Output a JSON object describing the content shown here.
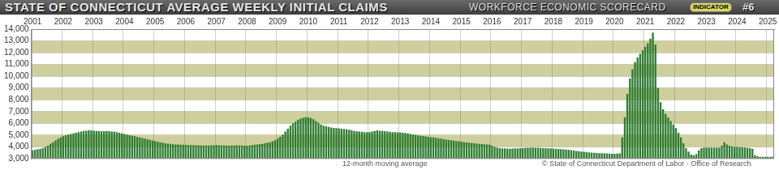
{
  "chart_data": {
    "type": "bar",
    "title": "STATE OF CONNECTICUT AVERAGE WEEKLY INITIAL CLAIMS",
    "subtitle": "WORKFORCE ECONOMIC SCORECARD",
    "annotations": [
      "INDICATOR",
      "#6",
      "12-month moving average",
      "© State of Connecticut Department of Labor - Office of Research"
    ],
    "categories": [
      "2001",
      null,
      null,
      null,
      null,
      null,
      null,
      null,
      null,
      null,
      null,
      null,
      "2002",
      null,
      null,
      null,
      null,
      null,
      null,
      null,
      null,
      null,
      null,
      null,
      "2003",
      null,
      null,
      null,
      null,
      null,
      null,
      null,
      null,
      null,
      null,
      null,
      "2004",
      null,
      null,
      null,
      null,
      null,
      null,
      null,
      null,
      null,
      null,
      null,
      "2005",
      null,
      null,
      null,
      null,
      null,
      null,
      null,
      null,
      null,
      null,
      null,
      "2006",
      null,
      null,
      null,
      null,
      null,
      null,
      null,
      null,
      null,
      null,
      null,
      "2007",
      null,
      null,
      null,
      null,
      null,
      null,
      null,
      null,
      null,
      null,
      null,
      "2008",
      null,
      null,
      null,
      null,
      null,
      null,
      null,
      null,
      null,
      null,
      null,
      "2009",
      null,
      null,
      null,
      null,
      null,
      null,
      null,
      null,
      null,
      null,
      null,
      "2010",
      null,
      null,
      null,
      null,
      null,
      null,
      null,
      null,
      null,
      null,
      null,
      "2011",
      null,
      null,
      null,
      null,
      null,
      null,
      null,
      null,
      null,
      null,
      null,
      "2012",
      null,
      null,
      null,
      null,
      null,
      null,
      null,
      null,
      null,
      null,
      null,
      "2013",
      null,
      null,
      null,
      null,
      null,
      null,
      null,
      null,
      null,
      null,
      null,
      "2014",
      null,
      null,
      null,
      null,
      null,
      null,
      null,
      null,
      null,
      null,
      null,
      "2015",
      null,
      null,
      null,
      null,
      null,
      null,
      null,
      null,
      null,
      null,
      null,
      "2016",
      null,
      null,
      null,
      null,
      null,
      null,
      null,
      null,
      null,
      null,
      null,
      "2017",
      null,
      null,
      null,
      null,
      null,
      null,
      null,
      null,
      null,
      null,
      null,
      "2018",
      null,
      null,
      null,
      null,
      null,
      null,
      null,
      null,
      null,
      null,
      null,
      "2019",
      null,
      null,
      null,
      null,
      null,
      null,
      null,
      null,
      null,
      null,
      null,
      "2020",
      null,
      null,
      null,
      null,
      null,
      null,
      null,
      null,
      null,
      null,
      null,
      "2021",
      null,
      null,
      null,
      null,
      null,
      null,
      null,
      null,
      null,
      null,
      null,
      "2022",
      null,
      null,
      null,
      null,
      null,
      null,
      null,
      null,
      null,
      null,
      null,
      "2023",
      null,
      null,
      null,
      null,
      null,
      null,
      null,
      null,
      null,
      null,
      null,
      "2024",
      null,
      null,
      null,
      null,
      null,
      null,
      null,
      null,
      null,
      null,
      null,
      "2025",
      null,
      null
    ],
    "values": [
      3700,
      3750,
      3800,
      3850,
      3900,
      4000,
      4100,
      4250,
      4400,
      4550,
      4700,
      4800,
      4900,
      5000,
      5050,
      5100,
      5150,
      5200,
      5250,
      5300,
      5350,
      5380,
      5400,
      5400,
      5380,
      5350,
      5350,
      5320,
      5330,
      5350,
      5340,
      5300,
      5280,
      5250,
      5200,
      5150,
      5100,
      5050,
      5000,
      4950,
      4900,
      4850,
      4800,
      4750,
      4700,
      4650,
      4600,
      4550,
      4500,
      4450,
      4400,
      4350,
      4300,
      4280,
      4250,
      4220,
      4200,
      4200,
      4180,
      4180,
      4170,
      4160,
      4150,
      4150,
      4140,
      4130,
      4120,
      4120,
      4110,
      4120,
      4130,
      4140,
      4150,
      4140,
      4130,
      4120,
      4110,
      4100,
      4110,
      4120,
      4130,
      4120,
      4110,
      4100,
      4100,
      4120,
      4150,
      4180,
      4200,
      4230,
      4260,
      4300,
      4350,
      4400,
      4480,
      4560,
      4700,
      4850,
      5050,
      5300,
      5550,
      5800,
      6000,
      6150,
      6300,
      6400,
      6480,
      6520,
      6500,
      6450,
      6350,
      6200,
      6050,
      5900,
      5800,
      5750,
      5700,
      5650,
      5620,
      5600,
      5580,
      5550,
      5520,
      5500,
      5450,
      5400,
      5350,
      5320,
      5300,
      5280,
      5260,
      5250,
      5250,
      5300,
      5350,
      5400,
      5380,
      5350,
      5330,
      5300,
      5280,
      5260,
      5250,
      5240,
      5230,
      5200,
      5180,
      5150,
      5100,
      5060,
      5020,
      4980,
      4950,
      4920,
      4890,
      4860,
      4830,
      4800,
      4770,
      4740,
      4700,
      4660,
      4620,
      4590,
      4560,
      4530,
      4500,
      4470,
      4440,
      4410,
      4380,
      4350,
      4320,
      4300,
      4280,
      4260,
      4240,
      4220,
      4200,
      4180,
      4100,
      4000,
      3950,
      3900,
      3880,
      3870,
      3860,
      3850,
      3860,
      3870,
      3880,
      3890,
      3900,
      3920,
      3930,
      3940,
      3940,
      3930,
      3920,
      3910,
      3900,
      3890,
      3880,
      3870,
      3860,
      3850,
      3830,
      3810,
      3790,
      3770,
      3750,
      3720,
      3690,
      3660,
      3630,
      3600,
      3580,
      3560,
      3540,
      3520,
      3500,
      3480,
      3470,
      3460,
      3450,
      3440,
      3430,
      3420,
      3420,
      3430,
      3450,
      4800,
      6500,
      8500,
      9800,
      10600,
      11200,
      11600,
      11900,
      12200,
      12500,
      12800,
      13200,
      13700,
      12700,
      9000,
      7800,
      7200,
      6800,
      6500,
      6200,
      5900,
      5600,
      5200,
      4800,
      4300,
      3900,
      3600,
      3350,
      3300,
      3400,
      3700,
      3900,
      3950,
      3950,
      3950,
      3950,
      3950,
      3950,
      3950,
      4100,
      4400,
      4200,
      4100,
      4050,
      4000,
      4000,
      3980,
      3960,
      3950,
      3930,
      3900,
      3850,
      3300,
      3200,
      3150,
      3150,
      3150,
      3150,
      3150,
      3150
    ],
    "color": "#2e7d32",
    "ylim": [
      3000,
      14000
    ],
    "yticks": [
      {
        "value": 3000,
        "label": "3,000"
      },
      {
        "value": 4000,
        "label": "4,000"
      },
      {
        "value": 5000,
        "label": "5,000"
      },
      {
        "value": 6000,
        "label": "6,000"
      },
      {
        "value": 7000,
        "label": "7,000"
      },
      {
        "value": 8000,
        "label": "8,000"
      },
      {
        "value": 9000,
        "label": "9,000"
      },
      {
        "value": 10000,
        "label": "10,000"
      },
      {
        "value": 11000,
        "label": "11,000"
      },
      {
        "value": 12000,
        "label": "12,000"
      },
      {
        "value": 13000,
        "label": "13,000"
      },
      {
        "value": 14000,
        "label": "14,000"
      }
    ],
    "grid": true
  }
}
